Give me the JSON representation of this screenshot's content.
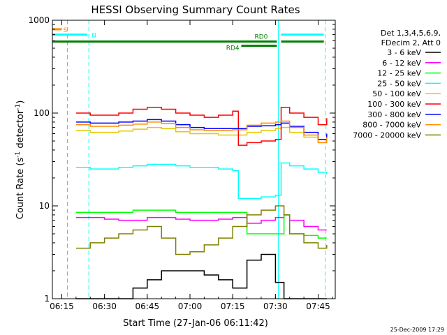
{
  "chart_data": {
    "type": "line",
    "title": "HESSI Observing Summary Count Rates",
    "xlabel": "Start Time (27-Jan-06 06:11:42)",
    "ylabel_main": "Count Rate (s",
    "ylabel_sup1": "-1",
    "ylabel_mid": " detector",
    "ylabel_sup2": "-1",
    "ylabel_end": ")",
    "yscale": "log",
    "ylim": [
      1,
      1000
    ],
    "xlim": [
      "06:11:42",
      "07:51:00"
    ],
    "x_ticks": [
      "06:15",
      "06:30",
      "06:45",
      "07:00",
      "07:15",
      "07:30",
      "07:45"
    ],
    "y_ticks": [
      "1",
      "10",
      "100",
      "1000"
    ],
    "legend_header": [
      "Det 1,3,4,5,6,9,",
      "FDecim 2, Att 0"
    ],
    "legend": [
      {
        "name": "3 - 6 keV",
        "color": "#000000"
      },
      {
        "name": "6 - 12 keV",
        "color": "#ff00ff"
      },
      {
        "name": "12 - 25 keV",
        "color": "#00ff00"
      },
      {
        "name": "25 - 50 keV",
        "color": "#00ffff"
      },
      {
        "name": "50 - 100 keV",
        "color": "#e6c800"
      },
      {
        "name": "100 - 300 keV",
        "color": "#ff0000"
      },
      {
        "name": "300 - 800 keV",
        "color": "#0000ff"
      },
      {
        "name": "800 - 7000 keV",
        "color": "#ff8c00"
      },
      {
        "name": "7000 - 20000 keV",
        "color": "#808000"
      }
    ],
    "series": [
      {
        "name": "3 - 6 keV",
        "color": "#000000",
        "x": [
          "06:20",
          "06:25",
          "06:30",
          "06:35",
          "06:40",
          "06:45",
          "06:50",
          "06:55",
          "07:00",
          "07:05",
          "07:10",
          "07:15",
          "07:20",
          "07:25",
          "07:30",
          "07:33",
          "07:35",
          "07:40",
          "07:45",
          "07:48"
        ],
        "y": [
          1,
          1,
          1,
          1,
          1.3,
          1.6,
          2,
          2,
          2,
          1.8,
          1.6,
          1.3,
          2.6,
          3,
          1.5,
          1,
          1,
          1,
          1,
          1
        ]
      },
      {
        "name": "6 - 12 keV",
        "color": "#ff00ff",
        "x": [
          "06:20",
          "06:25",
          "06:30",
          "06:35",
          "06:40",
          "06:45",
          "06:50",
          "06:55",
          "07:00",
          "07:05",
          "07:10",
          "07:15",
          "07:20",
          "07:25",
          "07:30",
          "07:33",
          "07:35",
          "07:40",
          "07:45",
          "07:48"
        ],
        "y": [
          7.5,
          7.5,
          7.2,
          7,
          7,
          7.5,
          7.5,
          7.2,
          7,
          7,
          7.2,
          7.5,
          6.5,
          7,
          7.5,
          8,
          7,
          6,
          5.5,
          5.5
        ]
      },
      {
        "name": "12 - 25 keV",
        "color": "#00ff00",
        "x": [
          "06:20",
          "06:25",
          "06:30",
          "06:35",
          "06:40",
          "06:45",
          "06:50",
          "06:55",
          "07:00",
          "07:05",
          "07:10",
          "07:15",
          "07:20",
          "07:25",
          "07:30",
          "07:33",
          "07:35",
          "07:40",
          "07:45",
          "07:48"
        ],
        "y": [
          8.5,
          8.5,
          8.5,
          8.5,
          9,
          9,
          9,
          8.5,
          8.5,
          8.5,
          8.5,
          8.5,
          5,
          5,
          5,
          8,
          5,
          4.8,
          4.5,
          4.5
        ]
      },
      {
        "name": "25 - 50 keV",
        "color": "#00ffff",
        "x": [
          "06:20",
          "06:25",
          "06:30",
          "06:35",
          "06:40",
          "06:45",
          "06:50",
          "06:55",
          "07:00",
          "07:05",
          "07:10",
          "07:15",
          "07:17",
          "07:20",
          "07:25",
          "07:30",
          "07:32",
          "07:35",
          "07:40",
          "07:45",
          "07:48"
        ],
        "y": [
          26,
          25,
          25,
          26,
          27,
          28,
          28,
          27,
          26,
          26,
          25,
          24,
          12,
          12,
          12.5,
          13,
          29,
          27,
          25,
          23,
          22
        ]
      },
      {
        "name": "50 - 100 keV",
        "color": "#e6c800",
        "x": [
          "06:20",
          "06:25",
          "06:30",
          "06:35",
          "06:40",
          "06:45",
          "06:50",
          "06:55",
          "07:00",
          "07:05",
          "07:10",
          "07:15",
          "07:20",
          "07:25",
          "07:30",
          "07:32",
          "07:35",
          "07:40",
          "07:45",
          "07:48"
        ],
        "y": [
          65,
          62,
          62,
          64,
          67,
          70,
          68,
          63,
          60,
          60,
          58,
          58,
          62,
          65,
          68,
          70,
          62,
          55,
          48,
          52
        ]
      },
      {
        "name": "100 - 300 keV",
        "color": "#ff0000",
        "x": [
          "06:20",
          "06:25",
          "06:30",
          "06:35",
          "06:40",
          "06:45",
          "06:50",
          "06:55",
          "07:00",
          "07:05",
          "07:10",
          "07:15",
          "07:17",
          "07:20",
          "07:25",
          "07:30",
          "07:32",
          "07:35",
          "07:40",
          "07:45",
          "07:48"
        ],
        "y": [
          100,
          95,
          95,
          100,
          110,
          115,
          110,
          100,
          95,
          90,
          95,
          105,
          45,
          48,
          50,
          52,
          115,
          100,
          90,
          75,
          88
        ]
      },
      {
        "name": "300 - 800 keV",
        "color": "#0000ff",
        "x": [
          "06:20",
          "06:25",
          "06:30",
          "06:35",
          "06:40",
          "06:45",
          "06:50",
          "06:55",
          "07:00",
          "07:05",
          "07:10",
          "07:15",
          "07:20",
          "07:25",
          "07:30",
          "07:32",
          "07:35",
          "07:40",
          "07:45",
          "07:48"
        ],
        "y": [
          80,
          78,
          78,
          80,
          82,
          85,
          82,
          75,
          70,
          68,
          68,
          68,
          72,
          73,
          75,
          78,
          72,
          62,
          52,
          60
        ]
      },
      {
        "name": "800 - 7000 keV",
        "color": "#ff8c00",
        "x": [
          "06:20",
          "06:25",
          "06:30",
          "06:35",
          "06:40",
          "06:45",
          "06:50",
          "06:55",
          "07:00",
          "07:05",
          "07:10",
          "07:15",
          "07:20",
          "07:25",
          "07:30",
          "07:32",
          "07:35",
          "07:40",
          "07:45",
          "07:48"
        ],
        "y": [
          75,
          72,
          72,
          74,
          76,
          80,
          77,
          70,
          66,
          65,
          65,
          66,
          74,
          78,
          80,
          82,
          70,
          58,
          48,
          55
        ]
      },
      {
        "name": "7000 - 20000 keV",
        "color": "#808000",
        "x": [
          "06:20",
          "06:25",
          "06:30",
          "06:35",
          "06:40",
          "06:45",
          "06:50",
          "06:55",
          "07:00",
          "07:05",
          "07:10",
          "07:15",
          "07:20",
          "07:25",
          "07:30",
          "07:33",
          "07:35",
          "07:40",
          "07:45",
          "07:48"
        ],
        "y": [
          3.5,
          4,
          4.5,
          5,
          5.5,
          6,
          4.5,
          3,
          3.2,
          3.8,
          4.5,
          6,
          8,
          9,
          10,
          8,
          5,
          4,
          3.5,
          3.8
        ]
      }
    ],
    "bars": [
      {
        "label": "S",
        "color": "#ff8c00",
        "x": [
          "06:11:42",
          "06:15:00"
        ],
        "y": 800
      },
      {
        "label": "N",
        "color": "#00ffff",
        "x": [
          "06:11:42",
          "06:24:00"
        ],
        "y": 700
      },
      {
        "label": "N",
        "color": "#00ffff",
        "x": [
          "07:32:00",
          "07:47:00"
        ],
        "y": 700
      },
      {
        "label": "RD0",
        "color": "#008000",
        "x": [
          "06:11:42",
          "07:30:30"
        ],
        "y": 590
      },
      {
        "label": "RD4",
        "color": "#008000",
        "x": [
          "07:18:00",
          "07:30:30"
        ],
        "y": 530
      },
      {
        "label": "RD0",
        "color": "#008000",
        "x": [
          "07:32:00",
          "07:47:00"
        ],
        "y": 590
      }
    ],
    "bar_labels": [
      {
        "text": "S",
        "color": "#ff8c00"
      },
      {
        "text": "N",
        "color": "#00ffff"
      },
      {
        "text": "RD0",
        "color": "#008000"
      },
      {
        "text": "RD4",
        "color": "#008000"
      }
    ],
    "vlines": [
      {
        "x": "06:11:42",
        "style": "solid",
        "color": "#00ffff"
      },
      {
        "x": "06:17:00",
        "style": "dashed",
        "color": "#ff8c00"
      },
      {
        "x": "06:24:30",
        "style": "dashed",
        "color": "#00ffff"
      },
      {
        "x": "07:31:00",
        "style": "solid",
        "color": "#00ffff"
      },
      {
        "x": "07:47:30",
        "style": "dashed",
        "color": "#00ffff"
      }
    ]
  },
  "timestamp": "25-Dec-2009 17:29"
}
